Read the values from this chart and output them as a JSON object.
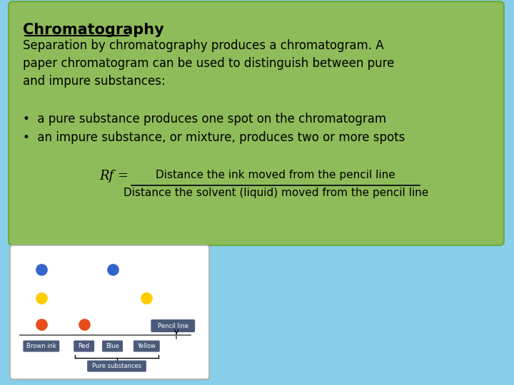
{
  "bg_color": "#87CEEB",
  "green_box_color": "#8FBC5A",
  "green_box_edgecolor": "#6aaa3a",
  "title": "Chromatography",
  "paragraph": "Separation by chromatography produces a chromatogram. A\npaper chromatogram can be used to distinguish between pure\nand impure substances:",
  "bullet1": "a pure substance produces one spot on the chromatogram",
  "bullet2": "an impure substance, or mixture, produces two or more spots",
  "rf_label": "Rf =",
  "rf_num": "Distance the ink moved from the pencil line",
  "rf_den": "Distance the solvent (liquid) moved from the pencil line",
  "chrom_bg": "#ffffff",
  "dot_blue": "#3366cc",
  "dot_yellow": "#ffcc00",
  "dot_orange": "#e84c1c",
  "label_bg": "#4a5a7a",
  "label_fg": "#ffffff",
  "pencil_line_color": "#555555"
}
